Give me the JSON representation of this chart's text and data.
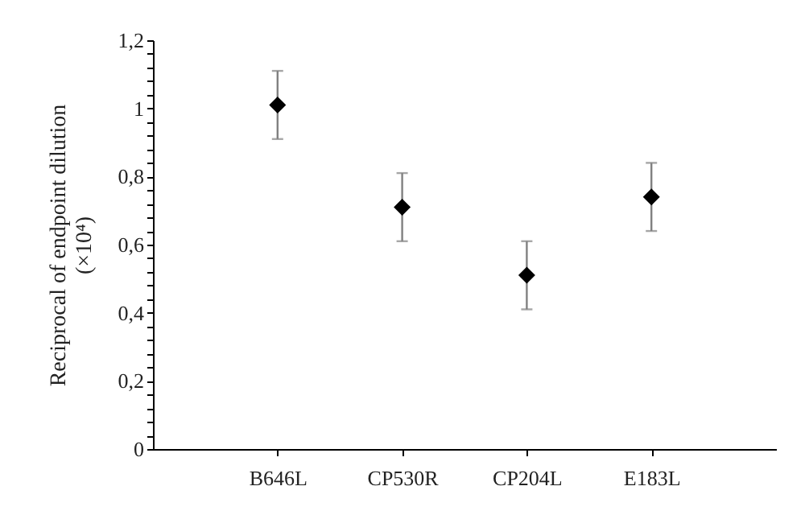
{
  "chart_data": {
    "type": "scatter",
    "ylabel": "Reciprocal of endpoint dilution\n(×10⁴)",
    "categories": [
      "B646L",
      "CP530R",
      "CP204L",
      "E183L"
    ],
    "values": [
      1.01,
      0.71,
      0.51,
      0.74
    ],
    "errors": [
      0.1,
      0.1,
      0.1,
      0.1
    ],
    "color": "#000000",
    "marker": "diamond",
    "ylim": [
      0,
      1.2
    ],
    "yticks": [
      {
        "value": 0,
        "label": "0"
      },
      {
        "value": 0.04,
        "label": null
      },
      {
        "value": 0.08,
        "label": null
      },
      {
        "value": 0.12,
        "label": null
      },
      {
        "value": 0.16,
        "label": null
      },
      {
        "value": 0.2,
        "label": "0,2"
      },
      {
        "value": 0.24,
        "label": null
      },
      {
        "value": 0.28,
        "label": null
      },
      {
        "value": 0.32,
        "label": null
      },
      {
        "value": 0.36,
        "label": null
      },
      {
        "value": 0.4,
        "label": "0,4"
      },
      {
        "value": 0.44,
        "label": null
      },
      {
        "value": 0.48,
        "label": null
      },
      {
        "value": 0.52,
        "label": null
      },
      {
        "value": 0.56,
        "label": null
      },
      {
        "value": 0.6,
        "label": "0,6"
      },
      {
        "value": 0.64,
        "label": null
      },
      {
        "value": 0.68,
        "label": null
      },
      {
        "value": 0.72,
        "label": null
      },
      {
        "value": 0.76,
        "label": null
      },
      {
        "value": 0.8,
        "label": "0,8"
      },
      {
        "value": 0.84,
        "label": null
      },
      {
        "value": 0.88,
        "label": null
      },
      {
        "value": 0.92,
        "label": null
      },
      {
        "value": 0.96,
        "label": null
      },
      {
        "value": 1,
        "label": "1"
      },
      {
        "value": 1.04,
        "label": null
      },
      {
        "value": 1.08,
        "label": null
      },
      {
        "value": 1.12,
        "label": null
      },
      {
        "value": 1.16,
        "label": null
      },
      {
        "value": 1.2,
        "label": "1,2"
      }
    ],
    "grid": false
  }
}
